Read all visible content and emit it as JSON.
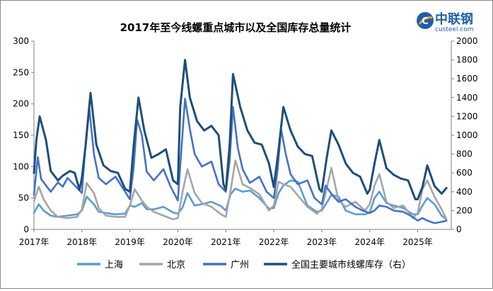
{
  "chart_data": {
    "type": "line",
    "title": "2017年至今线螺重点城市以及全国库存总量统计",
    "x_ticks": [
      "2017年",
      "2018年",
      "2019年",
      "2020年",
      "2021年",
      "2022年",
      "2023年",
      "2024年",
      "2025年"
    ],
    "y_left": {
      "ticks": [
        0,
        50,
        100,
        150,
        200,
        250,
        300
      ],
      "ylim": [
        0,
        300
      ]
    },
    "y_right": {
      "ticks": [
        0,
        200,
        400,
        600,
        800,
        1000,
        1200,
        1400,
        1600,
        1800,
        2000
      ],
      "ylim": [
        0,
        2000
      ]
    },
    "legend_position": "bottom",
    "series": [
      {
        "name": "上海",
        "axis": "left",
        "color": "#5b9bd5",
        "x": [
          2017.0,
          2017.1,
          2017.2,
          2017.35,
          2017.5,
          2017.7,
          2017.9,
          2018.0,
          2018.1,
          2018.25,
          2018.35,
          2018.5,
          2018.7,
          2018.9,
          2019.0,
          2019.1,
          2019.25,
          2019.35,
          2019.5,
          2019.7,
          2019.9,
          2020.0,
          2020.1,
          2020.2,
          2020.35,
          2020.5,
          2020.7,
          2020.9,
          2021.0,
          2021.1,
          2021.2,
          2021.35,
          2021.5,
          2021.7,
          2021.9,
          2022.0,
          2022.1,
          2022.2,
          2022.35,
          2022.5,
          2022.7,
          2022.9,
          2023.0,
          2023.1,
          2023.2,
          2023.35,
          2023.5,
          2023.7,
          2023.9,
          2024.0,
          2024.1,
          2024.2,
          2024.35,
          2024.5,
          2024.7,
          2024.9,
          2025.0,
          2025.1,
          2025.2,
          2025.35,
          2025.5,
          2025.6
        ],
        "y": [
          26,
          40,
          30,
          22,
          20,
          22,
          24,
          30,
          52,
          40,
          28,
          26,
          24,
          25,
          38,
          36,
          42,
          32,
          32,
          36,
          27,
          25,
          35,
          58,
          38,
          40,
          44,
          37,
          30,
          56,
          65,
          60,
          62,
          50,
          33,
          34,
          58,
          70,
          78,
          76,
          38,
          28,
          30,
          42,
          55,
          52,
          30,
          24,
          24,
          27,
          50,
          60,
          42,
          38,
          34,
          24,
          24,
          38,
          50,
          40,
          22,
          16
        ]
      },
      {
        "name": "北京",
        "axis": "left",
        "color": "#a5a5a5",
        "x": [
          2017.0,
          2017.1,
          2017.2,
          2017.35,
          2017.5,
          2017.7,
          2017.9,
          2018.0,
          2018.1,
          2018.25,
          2018.35,
          2018.5,
          2018.7,
          2018.9,
          2019.0,
          2019.1,
          2019.25,
          2019.35,
          2019.5,
          2019.7,
          2019.9,
          2020.0,
          2020.1,
          2020.2,
          2020.35,
          2020.5,
          2020.7,
          2020.9,
          2021.0,
          2021.1,
          2021.2,
          2021.35,
          2021.5,
          2021.7,
          2021.9,
          2022.0,
          2022.1,
          2022.2,
          2022.35,
          2022.5,
          2022.7,
          2022.9,
          2023.0,
          2023.1,
          2023.2,
          2023.35,
          2023.5,
          2023.7,
          2023.9,
          2024.0,
          2024.1,
          2024.2,
          2024.35,
          2024.5,
          2024.7,
          2024.9,
          2025.0,
          2025.1,
          2025.2,
          2025.35,
          2025.5,
          2025.6
        ],
        "y": [
          45,
          68,
          48,
          30,
          20,
          18,
          20,
          32,
          74,
          58,
          34,
          22,
          20,
          20,
          38,
          64,
          46,
          36,
          28,
          22,
          16,
          18,
          60,
          96,
          58,
          42,
          36,
          24,
          20,
          62,
          110,
          72,
          66,
          56,
          30,
          38,
          76,
          72,
          68,
          54,
          36,
          25,
          32,
          64,
          98,
          46,
          36,
          44,
          30,
          40,
          70,
          88,
          44,
          34,
          38,
          18,
          26,
          64,
          78,
          52,
          32,
          16
        ]
      },
      {
        "name": "广州",
        "axis": "left",
        "color": "#4472c4",
        "x": [
          2017.0,
          2017.08,
          2017.15,
          2017.25,
          2017.35,
          2017.5,
          2017.6,
          2017.7,
          2017.85,
          2018.0,
          2018.08,
          2018.15,
          2018.25,
          2018.35,
          2018.5,
          2018.7,
          2018.85,
          2019.0,
          2019.08,
          2019.15,
          2019.25,
          2019.35,
          2019.5,
          2019.7,
          2019.85,
          2020.0,
          2020.08,
          2020.15,
          2020.25,
          2020.35,
          2020.5,
          2020.7,
          2020.85,
          2021.0,
          2021.08,
          2021.15,
          2021.25,
          2021.35,
          2021.5,
          2021.7,
          2021.85,
          2022.0,
          2022.08,
          2022.15,
          2022.25,
          2022.35,
          2022.5,
          2022.7,
          2022.85,
          2023.0,
          2023.08,
          2023.15,
          2023.25,
          2023.35,
          2023.5,
          2023.7,
          2023.85,
          2024.0,
          2024.1,
          2024.2,
          2024.35,
          2024.5,
          2024.7,
          2024.85,
          2025.0,
          2025.1,
          2025.2,
          2025.35,
          2025.5,
          2025.6
        ],
        "y": [
          55,
          115,
          80,
          70,
          60,
          75,
          68,
          82,
          70,
          58,
          140,
          195,
          120,
          82,
          72,
          84,
          66,
          48,
          100,
          175,
          150,
          92,
          78,
          96,
          68,
          46,
          135,
          208,
          160,
          120,
          100,
          108,
          72,
          60,
          110,
          195,
          130,
          96,
          74,
          84,
          60,
          50,
          95,
          160,
          120,
          88,
          72,
          78,
          50,
          40,
          70,
          62,
          52,
          44,
          48,
          36,
          30,
          26,
          30,
          38,
          36,
          30,
          28,
          22,
          14,
          18,
          14,
          10,
          12,
          14
        ]
      },
      {
        "name": "全国主要城市线螺库存（右）",
        "axis": "right",
        "color": "#1f4e79",
        "x": [
          2017.0,
          2017.05,
          2017.12,
          2017.25,
          2017.35,
          2017.5,
          2017.6,
          2017.75,
          2017.85,
          2017.95,
          2018.0,
          2018.08,
          2018.18,
          2018.3,
          2018.45,
          2018.6,
          2018.75,
          2018.9,
          2019.0,
          2019.08,
          2019.18,
          2019.3,
          2019.45,
          2019.6,
          2019.75,
          2019.9,
          2020.0,
          2020.05,
          2020.15,
          2020.25,
          2020.4,
          2020.55,
          2020.7,
          2020.85,
          2020.95,
          2021.0,
          2021.08,
          2021.15,
          2021.3,
          2021.45,
          2021.6,
          2021.75,
          2021.9,
          2022.0,
          2022.1,
          2022.2,
          2022.35,
          2022.5,
          2022.65,
          2022.8,
          2022.95,
          2023.0,
          2023.1,
          2023.2,
          2023.35,
          2023.5,
          2023.65,
          2023.8,
          2023.95,
          2024.0,
          2024.1,
          2024.2,
          2024.35,
          2024.5,
          2024.65,
          2024.8,
          2024.95,
          2025.0,
          2025.1,
          2025.2,
          2025.35,
          2025.5,
          2025.6
        ],
        "y": [
          600,
          950,
          1200,
          950,
          620,
          520,
          570,
          620,
          600,
          420,
          550,
          900,
          1450,
          900,
          680,
          620,
          600,
          430,
          400,
          900,
          1400,
          1050,
          760,
          800,
          850,
          520,
          480,
          1300,
          1800,
          1400,
          1150,
          1050,
          1100,
          1000,
          480,
          420,
          900,
          1650,
          1300,
          1050,
          920,
          900,
          700,
          450,
          850,
          1300,
          1050,
          880,
          800,
          780,
          430,
          400,
          750,
          1050,
          900,
          700,
          600,
          560,
          380,
          420,
          700,
          950,
          650,
          580,
          540,
          520,
          320,
          320,
          450,
          680,
          460,
          380,
          440
        ]
      }
    ]
  },
  "logo": {
    "main_text": "中联钢",
    "sub_text": "custeel.com",
    "mark_letter": "C"
  }
}
